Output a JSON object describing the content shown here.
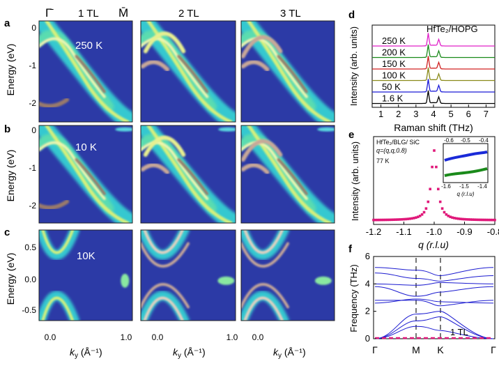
{
  "panel_letters": {
    "a": "a",
    "b": "b",
    "c": "c",
    "d": "d",
    "e": "e",
    "f": "f"
  },
  "columns": [
    "1 TL",
    "2 TL",
    "3 TL"
  ],
  "top_labels": {
    "gamma": "Γ̄",
    "m": "M̄"
  },
  "arpes": {
    "row_a": {
      "temp": "250 K",
      "ylabel": "Energy (eV)",
      "yticks": [
        "0",
        "-1",
        "-2"
      ]
    },
    "row_b": {
      "temp": "10 K",
      "ylabel": "Energy (eV)",
      "yticks": [
        "0",
        "-1",
        "-2"
      ]
    },
    "row_c": {
      "temp": "10K",
      "ylabel": "Energy (eV)",
      "yticks": [
        "0.5",
        "0.0",
        "-0.5"
      ]
    },
    "xticks": [
      "0.0",
      "1.0"
    ],
    "xlabel_k": "k",
    "xlabel_sub": "y",
    "xlabel_unit": " (Å⁻¹)"
  },
  "colors": {
    "arpes_bg": "#2c3aa6",
    "band": "#d8f07a",
    "spectrum_250": "#e020c8",
    "spectrum_200": "#1a8a1a",
    "spectrum_150": "#d02020",
    "spectrum_100": "#8a8a1a",
    "spectrum_50": "#1a1ad8",
    "spectrum_16": "#000000",
    "xray": "#e0197a",
    "phonon": "#1a1ad0"
  },
  "chart_data": [
    {
      "type": "line",
      "panel": "d",
      "title": "HfTe₂/HOPG",
      "xlabel": "Raman shift (THz)",
      "ylabel": "Intensity (arb. units)",
      "xlim": [
        0.5,
        7.5
      ],
      "xticks": [
        "1",
        "2",
        "3",
        "4",
        "5",
        "6",
        "7"
      ],
      "series": [
        {
          "name": "250 K",
          "peaks": [
            3.7,
            4.3
          ]
        },
        {
          "name": "200 K",
          "peaks": [
            3.7,
            4.3
          ]
        },
        {
          "name": "150 K",
          "peaks": [
            3.7,
            4.3
          ]
        },
        {
          "name": "100 K",
          "peaks": [
            3.7,
            4.3
          ]
        },
        {
          "name": "50 K",
          "peaks": [
            3.7,
            4.3
          ]
        },
        {
          "name": "1.6 K",
          "peaks": [
            3.7,
            4.3
          ]
        }
      ]
    },
    {
      "type": "scatter",
      "panel": "e",
      "annotation": [
        "HfTe₂/BLG/ SiC",
        "q=(q,q,0.8)",
        "77 K"
      ],
      "xlabel": "q (r.l.u)",
      "ylabel": "Intensity (arb. units)",
      "xlim": [
        -1.2,
        -0.8
      ],
      "xticks": [
        "-1.2",
        "-1.1",
        "-1.0",
        "-0.9",
        "-0.8"
      ],
      "peak": -1.0,
      "inset": {
        "xticks": [
          "-1.6",
          "-1.5",
          "-1.4"
        ],
        "top_ticks": [
          "-0.6",
          "-0.5",
          "-0.4"
        ],
        "xlabel": "q (r.l.u)"
      }
    },
    {
      "type": "line",
      "panel": "f",
      "xlabel": "",
      "ylabel": "Frequency (THz)",
      "ylim": [
        0,
        6
      ],
      "yticks": [
        "0",
        "2",
        "4",
        "6"
      ],
      "kpoints": [
        "Γ",
        "M",
        "K",
        "Γ"
      ],
      "label": "1 TL"
    }
  ]
}
